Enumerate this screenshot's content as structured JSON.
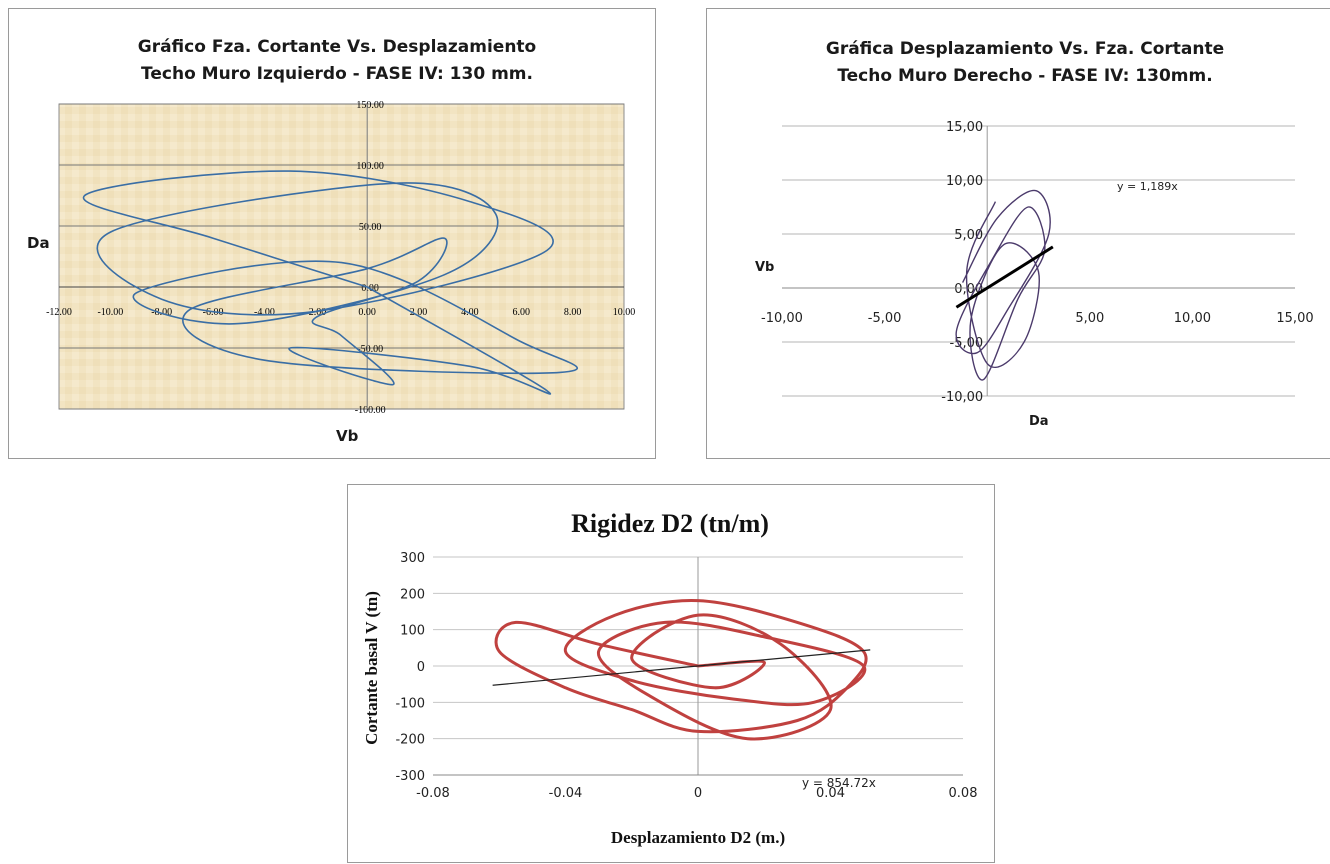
{
  "chart_data": [
    {
      "type": "line",
      "title": "Gráfico Fza. Cortante Vs. Desplazamiento",
      "subtitle": "Techo Muro Izquierdo  - FASE IV: 130 mm.",
      "xlabel": "Vb",
      "ylabel": "Da",
      "xlim": [
        -12,
        10
      ],
      "ylim": [
        -100,
        150
      ],
      "x_ticks": [
        "-12.00",
        "-10.00",
        "-8.00",
        "-6.00",
        "-4.00",
        "-2.00",
        "0.00",
        "2.00",
        "4.00",
        "6.00",
        "8.00",
        "10.00"
      ],
      "y_ticks": [
        "150.00",
        "100.00",
        "50.00",
        "0.00",
        "-50.00",
        "-100.00"
      ],
      "series": [
        {
          "color": "#3a6ea5",
          "x": [
            0,
            -6,
            -11,
            -3,
            4,
            7,
            -2,
            -8,
            -10,
            1,
            5,
            3,
            -5,
            -9,
            -1,
            6,
            7.5,
            -4,
            -7,
            0,
            3,
            2,
            -2,
            -1,
            1,
            -3,
            4,
            7,
            0
          ],
          "y": [
            0,
            40,
            75,
            95,
            70,
            30,
            -20,
            -10,
            45,
            85,
            60,
            10,
            -30,
            -5,
            20,
            -45,
            -70,
            -60,
            -20,
            15,
            40,
            5,
            -25,
            -40,
            -80,
            -50,
            -65,
            -85,
            0
          ]
        }
      ],
      "grid": true
    },
    {
      "type": "scatter",
      "title": "Gráfica Desplazamiento Vs. Fza. Cortante",
      "subtitle": "Techo Muro Derecho - FASE IV: 130mm.",
      "xlabel": "Da",
      "ylabel": "Vb",
      "xlim": [
        -10,
        15
      ],
      "ylim": [
        -10,
        15
      ],
      "x_ticks": [
        "-10,00",
        "-5,00",
        "5,00",
        "10,00",
        "15,00"
      ],
      "y_ticks": [
        "15,00",
        "10,00",
        "5,00",
        "0,00",
        "-5,00",
        "-10,00"
      ],
      "annotation": "y = 1,189x",
      "trendline_slope": 1.189,
      "trendline_x": [
        -1.5,
        3.2
      ],
      "series": [
        {
          "color": "#4b3a6b",
          "x": [
            -1.2,
            0.5,
            2.4,
            3.0,
            1.0,
            -0.5,
            -1.5,
            0.2,
            2.0,
            2.8,
            1.5,
            -0.2,
            -0.8,
            0.8,
            2.5,
            1.8,
            0.0,
            -1.0,
            0.4
          ],
          "y": [
            0.5,
            6.5,
            9.0,
            5.0,
            -2.0,
            -6.0,
            -4.0,
            2.5,
            7.5,
            3.5,
            -1.0,
            -8.5,
            -3.0,
            4.0,
            1.5,
            -5.0,
            -7.0,
            1.5,
            8.0
          ]
        }
      ],
      "grid": true
    },
    {
      "type": "line",
      "title": "Rigidez D2 (tn/m)",
      "xlabel": "Desplazamiento D2 (m.)",
      "ylabel": "Cortante basal V (tn)",
      "xlim": [
        -0.08,
        0.08
      ],
      "ylim": [
        -300,
        300
      ],
      "x_ticks": [
        "-0.08",
        "-0.04",
        "0",
        "0.04",
        "0.08"
      ],
      "y_ticks": [
        "300",
        "200",
        "100",
        "0",
        "-100",
        "-200",
        "-300"
      ],
      "annotation": "y = 854.72x",
      "trendline_slope": 854.72,
      "trendline_x": [
        -0.062,
        0.052
      ],
      "series": [
        {
          "color": "#c0413f",
          "x": [
            0,
            -0.03,
            -0.055,
            -0.06,
            -0.04,
            -0.02,
            0.0,
            0.03,
            0.045,
            0.05,
            0.03,
            0.0,
            -0.025,
            -0.04,
            -0.02,
            0.01,
            0.035,
            0.05,
            0.02,
            -0.01,
            -0.03,
            -0.015,
            0.015,
            0.04,
            0.025,
            0.0,
            -0.02,
            0.005,
            0.02,
            0.0
          ],
          "y": [
            0,
            60,
            120,
            40,
            -60,
            -120,
            -180,
            -150,
            -60,
            40,
            120,
            180,
            140,
            40,
            -40,
            -90,
            -100,
            0,
            80,
            120,
            40,
            -80,
            -200,
            -120,
            60,
            140,
            20,
            -60,
            10,
            0
          ]
        }
      ],
      "grid": true
    }
  ]
}
